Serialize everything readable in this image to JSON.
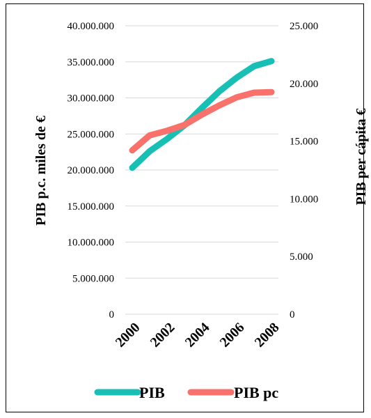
{
  "chart_data": {
    "type": "line",
    "x": [
      2000,
      2001,
      2002,
      2003,
      2004,
      2005,
      2006,
      2007,
      2008
    ],
    "x_tick_labels": [
      "2000",
      "2002",
      "2004",
      "2006",
      "2008"
    ],
    "y_left": {
      "label": "PIB p.c. miles de €",
      "ylim": [
        0,
        40000000
      ],
      "tick_labels": [
        "0",
        "5.000.000",
        "10.000.000",
        "15.000.000",
        "20.000.000",
        "25.000.000",
        "30.000.000",
        "35.000.000",
        "40.000.000"
      ]
    },
    "y_right": {
      "label": "PIB per cápita €",
      "ylim": [
        0,
        25000
      ],
      "tick_labels": [
        "0",
        "5.000",
        "10.000",
        "15.000",
        "20.000",
        "25.000"
      ]
    },
    "series": [
      {
        "name": "PIB",
        "axis": "left",
        "color": "#17bfb4",
        "values": [
          20300000,
          22600000,
          24300000,
          26200000,
          28600000,
          30900000,
          32800000,
          34400000,
          35100000
        ]
      },
      {
        "name": "PIB pc",
        "axis": "right",
        "color": "#f8716b",
        "values": [
          14200,
          15500,
          15900,
          16400,
          17300,
          18100,
          18800,
          19200,
          19250
        ]
      }
    ],
    "grid": true,
    "legend_position": "bottom"
  }
}
